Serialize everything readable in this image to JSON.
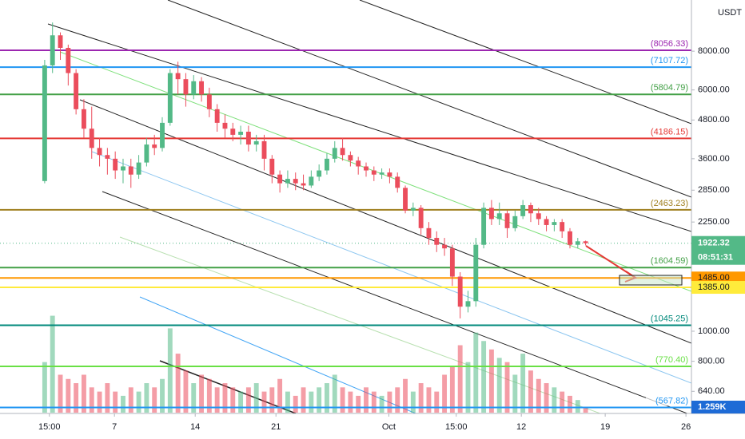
{
  "chart_data": {
    "type": "candlestick",
    "currency": "USDT",
    "log_scale": true,
    "up_color": "#53b987",
    "down_color": "#eb4d5c",
    "ylim": [
      543,
      11700
    ],
    "yticks": [
      {
        "value": 640,
        "label": "640.00"
      },
      {
        "value": 800,
        "label": "800.00"
      },
      {
        "value": 1000,
        "label": "1000.00"
      },
      {
        "value": 2250,
        "label": "2250.00"
      },
      {
        "value": 2850,
        "label": "2850.00"
      },
      {
        "value": 3600,
        "label": "3600.00"
      },
      {
        "value": 4800,
        "label": "4800.00"
      },
      {
        "value": 6000,
        "label": "6000.00"
      },
      {
        "value": 8000,
        "label": "8000.00"
      }
    ],
    "xlim": [
      -5.7,
      82.5
    ],
    "xticks": [
      {
        "value": 0.6,
        "label": "15:00"
      },
      {
        "value": 8.9,
        "label": "7"
      },
      {
        "value": 19.2,
        "label": "14"
      },
      {
        "value": 29.5,
        "label": "21"
      },
      {
        "value": 43.9,
        "label": "Oct"
      },
      {
        "value": 52.5,
        "label": "15:00"
      },
      {
        "value": 60.8,
        "label": "12"
      },
      {
        "value": 71.5,
        "label": "19"
      },
      {
        "value": 81.8,
        "label": "26"
      }
    ],
    "open": [
      3050,
      7200,
      9000,
      8200,
      6800,
      5200,
      4500,
      3900,
      3700,
      3600,
      3300,
      3400,
      3200,
      3500,
      4000,
      3900,
      4700,
      6800,
      6500,
      5800,
      6400,
      5800,
      5200,
      4700,
      4500,
      4300,
      4400,
      4000,
      4100,
      3600,
      3200,
      3000,
      3100,
      3000,
      2950,
      3150,
      3300,
      3600,
      3900,
      3700,
      3550,
      3400,
      3300,
      3200,
      3250,
      3150,
      2900,
      2450,
      2500,
      2150,
      2000,
      1900,
      1850,
      1500,
      1200,
      1250,
      1900,
      2500,
      2300,
      2400,
      2150,
      2350,
      2550,
      2400,
      2300,
      2200,
      2250,
      2100,
      1900,
      1950
    ],
    "high": [
      7500,
      9900,
      9200,
      8400,
      7000,
      5600,
      5300,
      4200,
      3900,
      3800,
      3600,
      3600,
      3700,
      4200,
      4300,
      4900,
      7000,
      7400,
      6800,
      6700,
      6600,
      6100,
      5400,
      5000,
      4700,
      4600,
      4600,
      4300,
      4300,
      3700,
      3300,
      3300,
      3250,
      3200,
      3300,
      3450,
      3750,
      4100,
      4200,
      3800,
      3650,
      3500,
      3400,
      3350,
      3350,
      3250,
      2950,
      2600,
      2550,
      2250,
      2100,
      2000,
      1900,
      1550,
      1350,
      2000,
      2600,
      2650,
      2600,
      2450,
      2450,
      2650,
      2600,
      2500,
      2350,
      2300,
      2300,
      2150,
      2000,
      1960
    ],
    "low": [
      3000,
      6800,
      7500,
      6200,
      5000,
      4200,
      3600,
      3400,
      3200,
      3100,
      3000,
      2900,
      3100,
      3400,
      3700,
      3800,
      4600,
      5800,
      5300,
      5600,
      5500,
      4900,
      4400,
      4200,
      4100,
      4000,
      3800,
      3800,
      3300,
      3000,
      2800,
      2900,
      2850,
      2850,
      2900,
      3050,
      3200,
      3500,
      3550,
      3400,
      3200,
      3150,
      3050,
      3100,
      3000,
      2800,
      2400,
      2350,
      2050,
      1900,
      1800,
      1750,
      1400,
      1100,
      1150,
      1200,
      1850,
      2200,
      2200,
      2000,
      2100,
      2300,
      2250,
      2200,
      2100,
      2100,
      2000,
      1850,
      1850,
      1890
    ],
    "close": [
      7200,
      9000,
      8200,
      6800,
      5200,
      4500,
      3900,
      3700,
      3600,
      3300,
      3400,
      3200,
      3500,
      4000,
      3900,
      4700,
      6800,
      6500,
      5800,
      6400,
      5800,
      5200,
      4700,
      4500,
      4300,
      4400,
      4000,
      4100,
      3600,
      3200,
      3000,
      3100,
      3000,
      2950,
      3150,
      3300,
      3600,
      3900,
      3700,
      3550,
      3400,
      3300,
      3200,
      3250,
      3150,
      2900,
      2450,
      2500,
      2150,
      2000,
      1900,
      1850,
      1500,
      1200,
      1250,
      1900,
      2500,
      2300,
      2400,
      2150,
      2350,
      2550,
      2400,
      2300,
      2200,
      2250,
      2100,
      1900,
      1950,
      1922.32
    ],
    "volume_lim": [
      0,
      25
    ],
    "volume": [
      12,
      23,
      9,
      8,
      7,
      9,
      6,
      5,
      7,
      5,
      4,
      6,
      5,
      7,
      6,
      8,
      20,
      14,
      10,
      7,
      9,
      8,
      6,
      7,
      6,
      5,
      6,
      7,
      5,
      6,
      8,
      5,
      4,
      6,
      5,
      6,
      7,
      9,
      6,
      5,
      4,
      6,
      5,
      4,
      5,
      6,
      8,
      5,
      7,
      6,
      5,
      9,
      11,
      16,
      12,
      19,
      17,
      15,
      13,
      12,
      9,
      14,
      10,
      8,
      7,
      6,
      5,
      4,
      3,
      1.259
    ],
    "volume_label": "1.259K",
    "last_price": 1922.32,
    "last_price_label": "1922.32",
    "countdown": "08:51:31",
    "levels": [
      {
        "value": 8056.33,
        "label": "(8056.33)",
        "color": "#9c27b0"
      },
      {
        "value": 7107.72,
        "label": "(7107.72)",
        "color": "#2196f3"
      },
      {
        "value": 5804.79,
        "label": "(5804.79)",
        "color": "#43a047"
      },
      {
        "value": 4186.15,
        "label": "(4186.15)",
        "color": "#e53935"
      },
      {
        "value": 2463.23,
        "label": "(2463.23)",
        "color": "#a08020"
      },
      {
        "value": 1604.59,
        "label": "(1604.59)",
        "color": "#43a047"
      },
      {
        "value": 1045.25,
        "label": "(1045.25)",
        "color": "#00897b"
      },
      {
        "value": 770.4,
        "label": "(770.40)",
        "color": "#69e045"
      },
      {
        "value": 567.82,
        "label": "(567.82)",
        "color": "#2196f3"
      }
    ],
    "price_tags": [
      {
        "value": 1485.0,
        "label": "1485.00",
        "color": "#ff9800"
      },
      {
        "value": 1385.0,
        "label": "1385.00",
        "color": "#ffeb3b"
      }
    ]
  }
}
